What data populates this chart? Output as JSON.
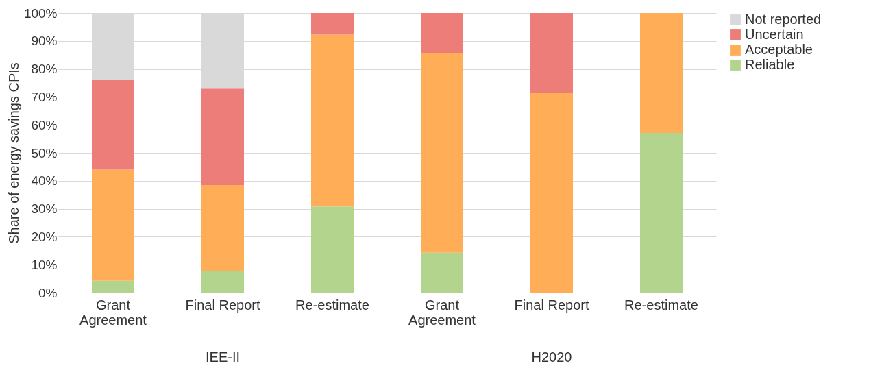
{
  "chart_data": {
    "type": "bar",
    "stacked": true,
    "ylabel": "Share of energy savings CPIs",
    "categories": [
      "Grant Agreement",
      "Final Report",
      "Re-estimate",
      "Grant Agreement",
      "Final Report",
      "Re-estimate"
    ],
    "series": [
      {
        "name": "Reliable",
        "color": "#b3d48c",
        "values": [
          4.2,
          7.6,
          30.8,
          14.3,
          0,
          57.1
        ]
      },
      {
        "name": "Acceptable",
        "color": "#ffae57",
        "values": [
          39.8,
          30.9,
          61.5,
          71.4,
          71.4,
          42.9
        ]
      },
      {
        "name": "Uncertain",
        "color": "#ed7d78",
        "values": [
          32,
          34.5,
          7.7,
          14.3,
          28.6,
          0
        ]
      },
      {
        "name": "Not reported",
        "color": "#d9d9d9",
        "values": [
          24,
          27,
          0,
          0,
          0,
          0
        ]
      }
    ],
    "ylim": [
      0,
      100
    ],
    "yticks": [
      {
        "value": 0,
        "label": "0%"
      },
      {
        "value": 10,
        "label": "10%"
      },
      {
        "value": 20,
        "label": "20%"
      },
      {
        "value": 30,
        "label": "30%"
      },
      {
        "value": 40,
        "label": "40%"
      },
      {
        "value": 50,
        "label": "50%"
      },
      {
        "value": 60,
        "label": "60%"
      },
      {
        "value": 70,
        "label": "70%"
      },
      {
        "value": 80,
        "label": "80%"
      },
      {
        "value": 90,
        "label": "90%"
      },
      {
        "value": 100,
        "label": "100%"
      }
    ],
    "grid": "y",
    "legend": "right",
    "annotations": [
      "IEE-II",
      "H2020"
    ]
  }
}
